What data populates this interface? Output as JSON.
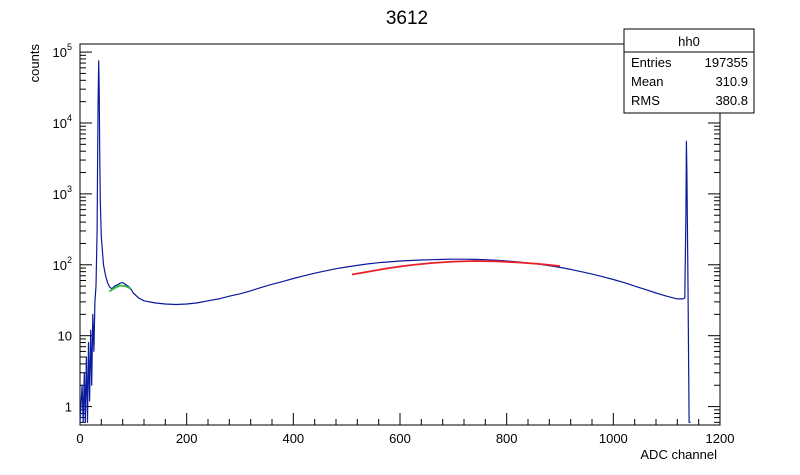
{
  "chart_data": {
    "type": "line",
    "title": "3612",
    "xlabel": "ADC channel",
    "ylabel": "counts",
    "xlim": [
      0,
      1200
    ],
    "ylim": [
      0.55,
      130000
    ],
    "yscale": "log",
    "grid": false,
    "x_ticks": [
      0,
      200,
      400,
      600,
      800,
      1000,
      1200
    ],
    "y_ticks": [
      {
        "value": 1,
        "base": "1",
        "exp": ""
      },
      {
        "value": 10,
        "base": "10",
        "exp": ""
      },
      {
        "value": 100,
        "base": "10",
        "exp": "2"
      },
      {
        "value": 1000,
        "base": "10",
        "exp": "3"
      },
      {
        "value": 10000,
        "base": "10",
        "exp": "4"
      },
      {
        "value": 100000,
        "base": "10",
        "exp": "5"
      }
    ],
    "series": [
      {
        "color": "#0a1a9c",
        "points": [
          [
            0,
            0.6
          ],
          [
            4,
            2
          ],
          [
            6,
            0.6
          ],
          [
            8,
            3
          ],
          [
            10,
            0.6
          ],
          [
            12,
            5
          ],
          [
            14,
            0.6
          ],
          [
            16,
            8
          ],
          [
            18,
            1.2
          ],
          [
            20,
            12
          ],
          [
            22,
            2
          ],
          [
            24,
            20
          ],
          [
            26,
            6
          ],
          [
            28,
            30
          ],
          [
            30,
            50
          ],
          [
            32,
            300
          ],
          [
            33,
            3000
          ],
          [
            34,
            20000
          ],
          [
            35,
            75000
          ],
          [
            36,
            30000
          ],
          [
            37,
            4000
          ],
          [
            38,
            800
          ],
          [
            40,
            250
          ],
          [
            44,
            100
          ],
          [
            48,
            70
          ],
          [
            52,
            55
          ],
          [
            56,
            48
          ],
          [
            60,
            46
          ],
          [
            65,
            50
          ],
          [
            70,
            52
          ],
          [
            75,
            55
          ],
          [
            80,
            56
          ],
          [
            85,
            53
          ],
          [
            90,
            50
          ],
          [
            95,
            46
          ],
          [
            100,
            40
          ],
          [
            110,
            34
          ],
          [
            120,
            31
          ],
          [
            140,
            29
          ],
          [
            160,
            28
          ],
          [
            180,
            27.5
          ],
          [
            200,
            28
          ],
          [
            220,
            29
          ],
          [
            240,
            31
          ],
          [
            260,
            33
          ],
          [
            280,
            36
          ],
          [
            300,
            39
          ],
          [
            320,
            43
          ],
          [
            340,
            48
          ],
          [
            360,
            53
          ],
          [
            380,
            58
          ],
          [
            400,
            64
          ],
          [
            420,
            70
          ],
          [
            440,
            76
          ],
          [
            460,
            82
          ],
          [
            480,
            88
          ],
          [
            500,
            93
          ],
          [
            520,
            98
          ],
          [
            540,
            103
          ],
          [
            560,
            107
          ],
          [
            580,
            110
          ],
          [
            600,
            113
          ],
          [
            620,
            115
          ],
          [
            640,
            117
          ],
          [
            660,
            118
          ],
          [
            680,
            119
          ],
          [
            700,
            120
          ],
          [
            720,
            120
          ],
          [
            740,
            119
          ],
          [
            760,
            118
          ],
          [
            780,
            116
          ],
          [
            800,
            113
          ],
          [
            820,
            110
          ],
          [
            840,
            106
          ],
          [
            860,
            102
          ],
          [
            880,
            97
          ],
          [
            900,
            92
          ],
          [
            920,
            86
          ],
          [
            940,
            80
          ],
          [
            960,
            74
          ],
          [
            980,
            68
          ],
          [
            1000,
            62
          ],
          [
            1020,
            56
          ],
          [
            1040,
            50
          ],
          [
            1060,
            45
          ],
          [
            1080,
            40
          ],
          [
            1100,
            36
          ],
          [
            1120,
            33
          ],
          [
            1130,
            33
          ],
          [
            1134,
            34
          ],
          [
            1136,
            500
          ],
          [
            1137,
            5500
          ],
          [
            1138,
            2000
          ],
          [
            1140,
            50
          ],
          [
            1142,
            0.6
          ],
          [
            1145,
            0.6
          ]
        ]
      },
      {
        "color": "#e8202a",
        "points": [
          [
            510,
            73
          ],
          [
            540,
            80
          ],
          [
            580,
            90
          ],
          [
            620,
            99
          ],
          [
            660,
            106
          ],
          [
            700,
            111
          ],
          [
            740,
            113
          ],
          [
            780,
            112
          ],
          [
            820,
            108
          ],
          [
            860,
            103
          ],
          [
            900,
            96
          ]
        ]
      },
      {
        "color": "#30c030",
        "points": [
          [
            55,
            42
          ],
          [
            65,
            47
          ],
          [
            75,
            51
          ],
          [
            85,
            50
          ],
          [
            95,
            46
          ]
        ]
      }
    ]
  },
  "stats": {
    "name": "hh0",
    "rows": [
      {
        "label": "Entries",
        "value": "197355"
      },
      {
        "label": "Mean",
        "value": "310.9"
      },
      {
        "label": "RMS",
        "value": "380.8"
      }
    ]
  }
}
